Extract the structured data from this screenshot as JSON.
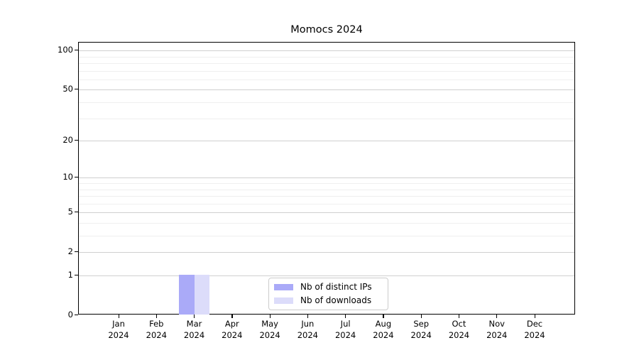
{
  "chart_data": {
    "type": "bar",
    "title": "Momocs 2024",
    "categories": [
      "Jan",
      "Feb",
      "Mar",
      "Apr",
      "May",
      "Jun",
      "Jul",
      "Aug",
      "Sep",
      "Oct",
      "Nov",
      "Dec"
    ],
    "category_year": "2024",
    "series": [
      {
        "name": "Nb of distinct IPs",
        "color": "#aaaaf8",
        "values": [
          0,
          0,
          1,
          0,
          0,
          0,
          0,
          0,
          0,
          0,
          0,
          0
        ]
      },
      {
        "name": "Nb of downloads",
        "color": "#dcdcfa",
        "values": [
          0,
          0,
          1,
          0,
          0,
          0,
          0,
          0,
          0,
          0,
          0,
          0
        ]
      }
    ],
    "xlabel": "",
    "ylabel": "",
    "y_axis": {
      "scale": "log1p",
      "ticks": [
        0,
        1,
        2,
        5,
        10,
        20,
        50,
        100
      ],
      "minor_gridlines": [
        3,
        4,
        6,
        7,
        8,
        9,
        30,
        40,
        60,
        70,
        80,
        90
      ],
      "ylim": [
        0,
        115
      ]
    },
    "grid": "horizontal",
    "legend": {
      "position": "inside-bottom-center",
      "entries": [
        "Nb of distinct IPs",
        "Nb of downloads"
      ]
    }
  }
}
